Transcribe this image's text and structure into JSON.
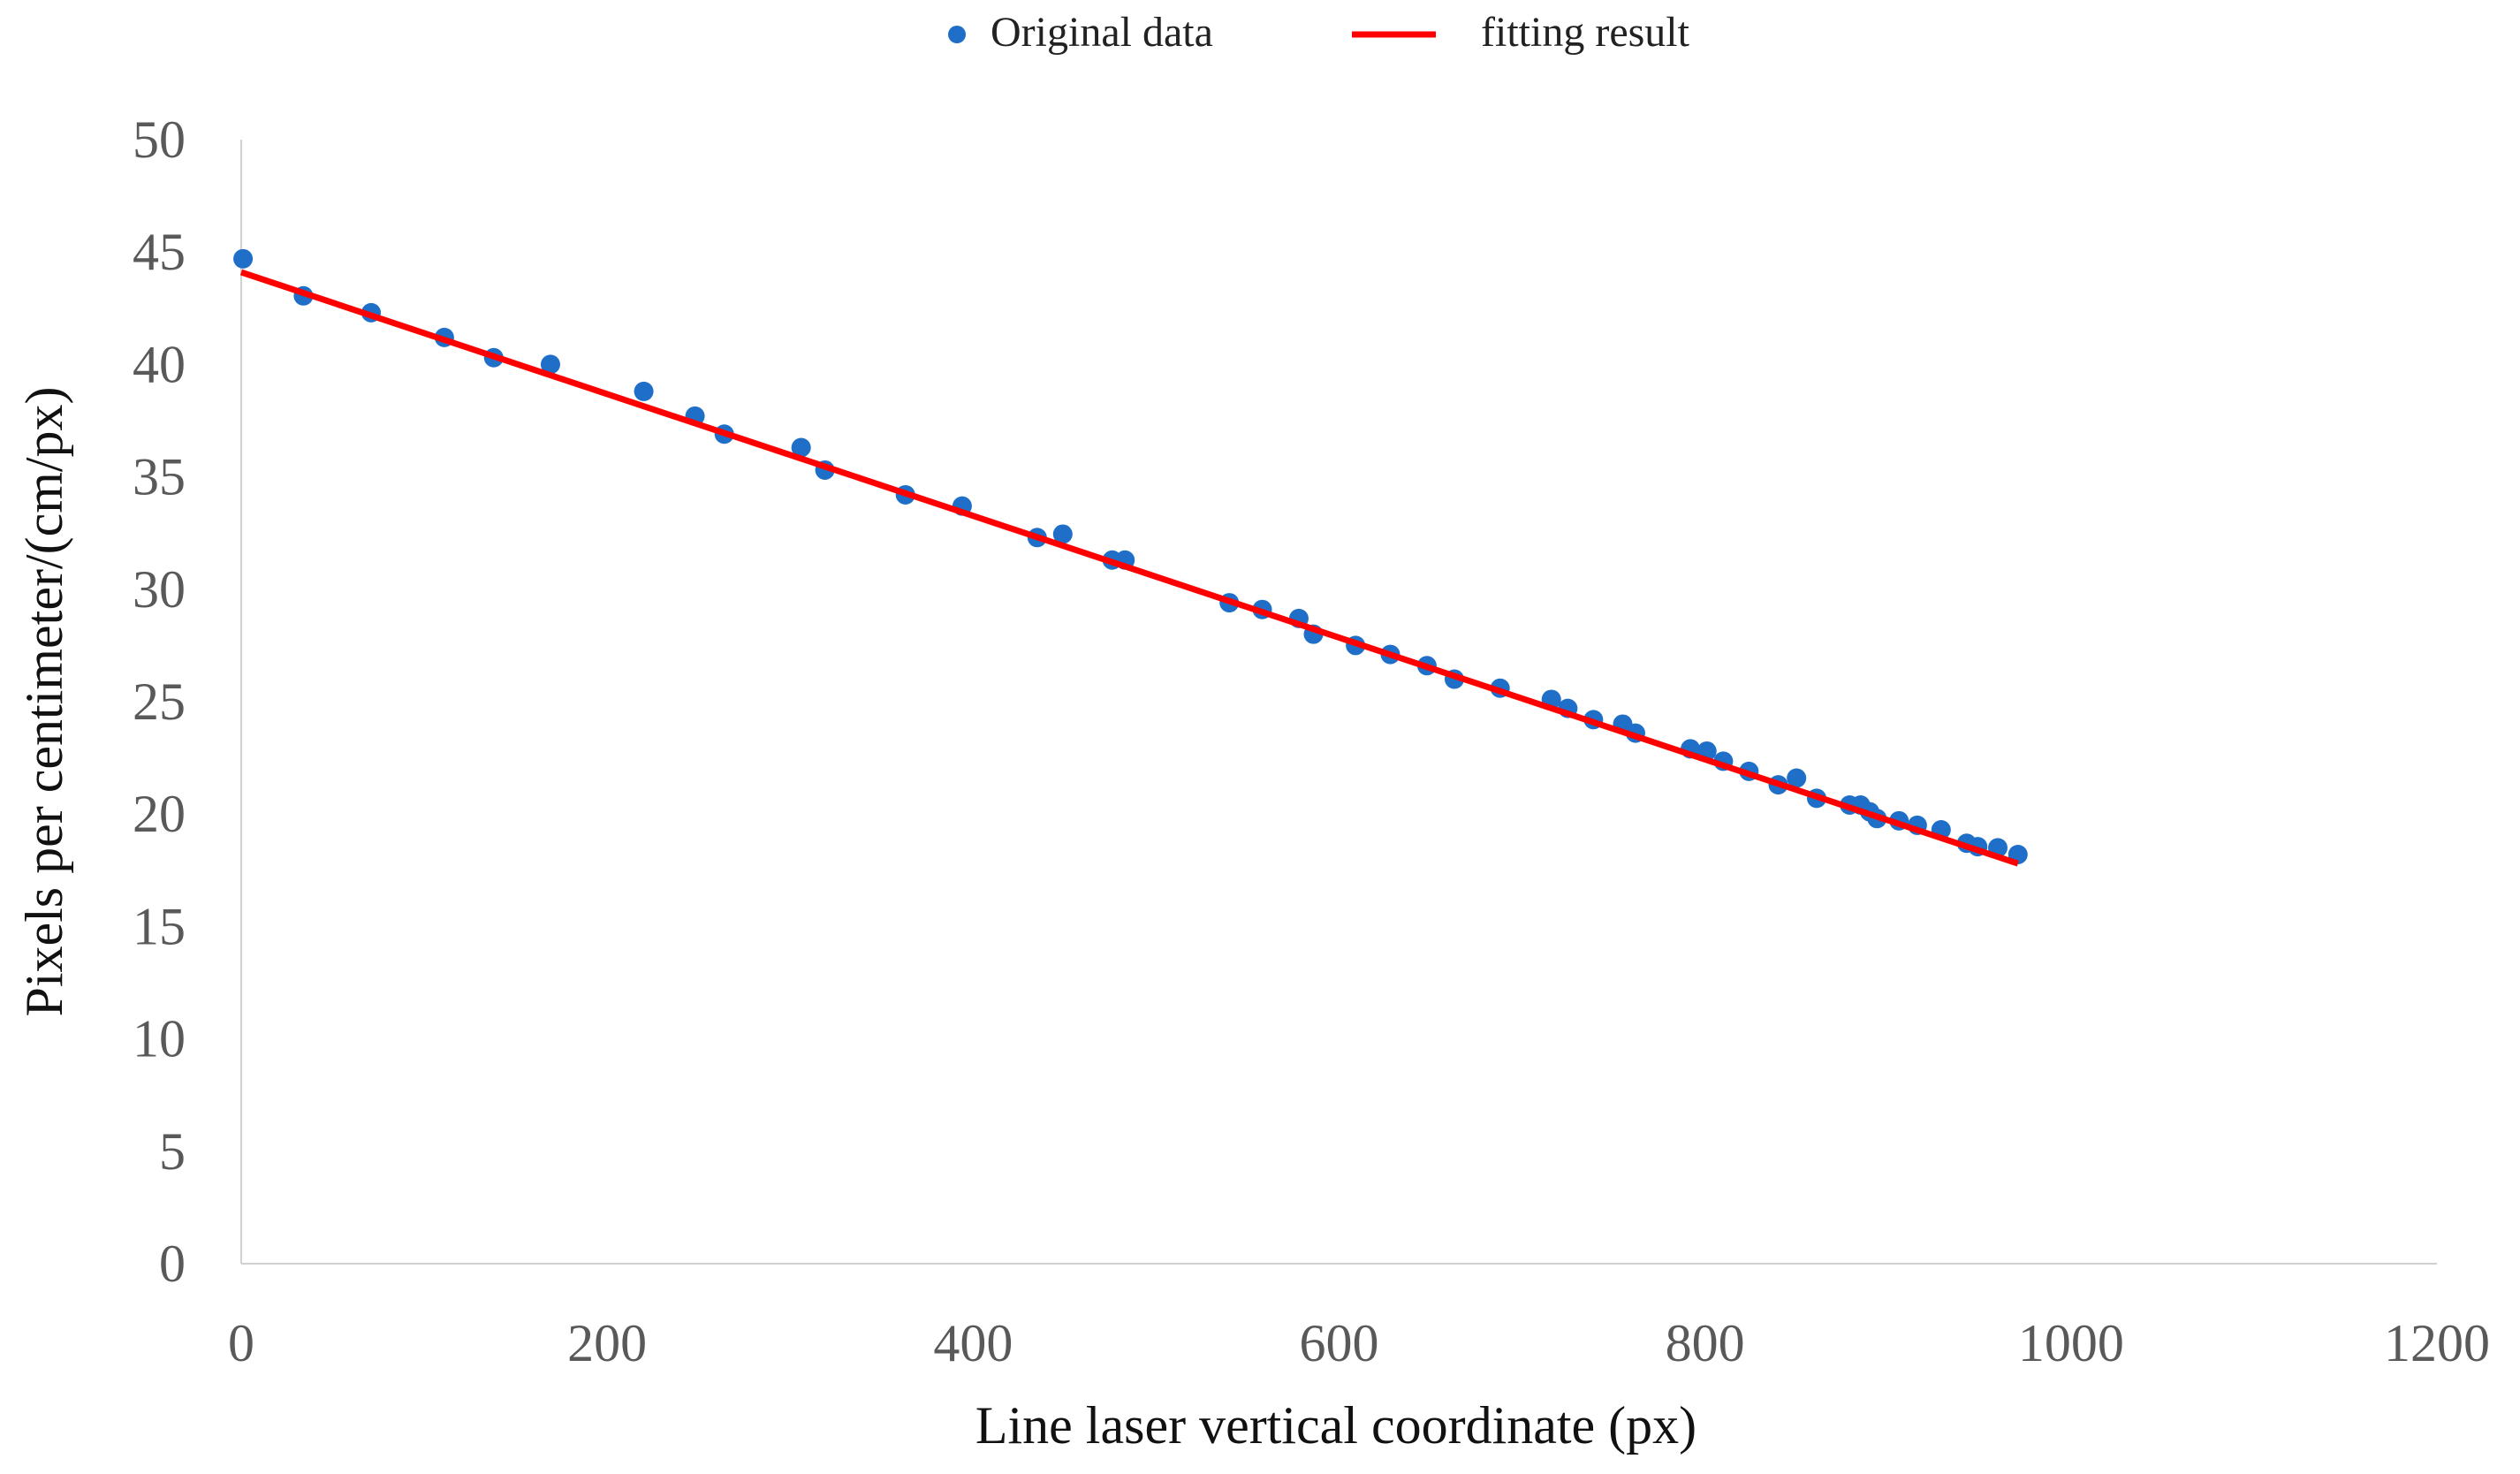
{
  "chart_data": {
    "type": "scatter",
    "title": "",
    "xlabel": "Line laser vertical coordinate (px)",
    "ylabel": "Pixels per centimeter/(cm/px)",
    "xlim": [
      0,
      1200
    ],
    "ylim": [
      0,
      50
    ],
    "xticks": [
      "0",
      "200",
      "400",
      "600",
      "800",
      "1000",
      "1200"
    ],
    "yticks": [
      "0",
      "5",
      "10",
      "15",
      "20",
      "25",
      "30",
      "35",
      "40",
      "45",
      "50"
    ],
    "grid": false,
    "legend_position": "top-center",
    "series": [
      {
        "name": "Original data",
        "kind": "scatter",
        "color": "#1f6fc8",
        "x": [
          1,
          34,
          71,
          111,
          138,
          169,
          220,
          248,
          264,
          306,
          319,
          363,
          394,
          435,
          449,
          476,
          483,
          540,
          558,
          578,
          586,
          609,
          628,
          648,
          663,
          688,
          716,
          725,
          739,
          755,
          762,
          792,
          801,
          810,
          824,
          840,
          850,
          861,
          879,
          885,
          890,
          894,
          906,
          916,
          929,
          943,
          949,
          960,
          971
        ],
        "y": [
          44.7,
          43.05,
          42.3,
          41.2,
          40.3,
          40.0,
          38.8,
          37.7,
          36.9,
          36.3,
          35.3,
          34.2,
          33.7,
          32.3,
          32.45,
          31.3,
          31.3,
          29.4,
          29.1,
          28.7,
          28.0,
          27.5,
          27.1,
          26.6,
          26.0,
          25.6,
          25.1,
          24.7,
          24.2,
          24.0,
          23.6,
          22.9,
          22.8,
          22.35,
          21.9,
          21.3,
          21.6,
          20.7,
          20.4,
          20.4,
          20.1,
          19.8,
          19.7,
          19.5,
          19.3,
          18.7,
          18.55,
          18.5,
          18.2
        ]
      },
      {
        "name": "fitting result",
        "kind": "line",
        "color": "#ff0000",
        "x": [
          0,
          971
        ],
        "y": [
          44.1,
          17.8
        ]
      }
    ]
  }
}
